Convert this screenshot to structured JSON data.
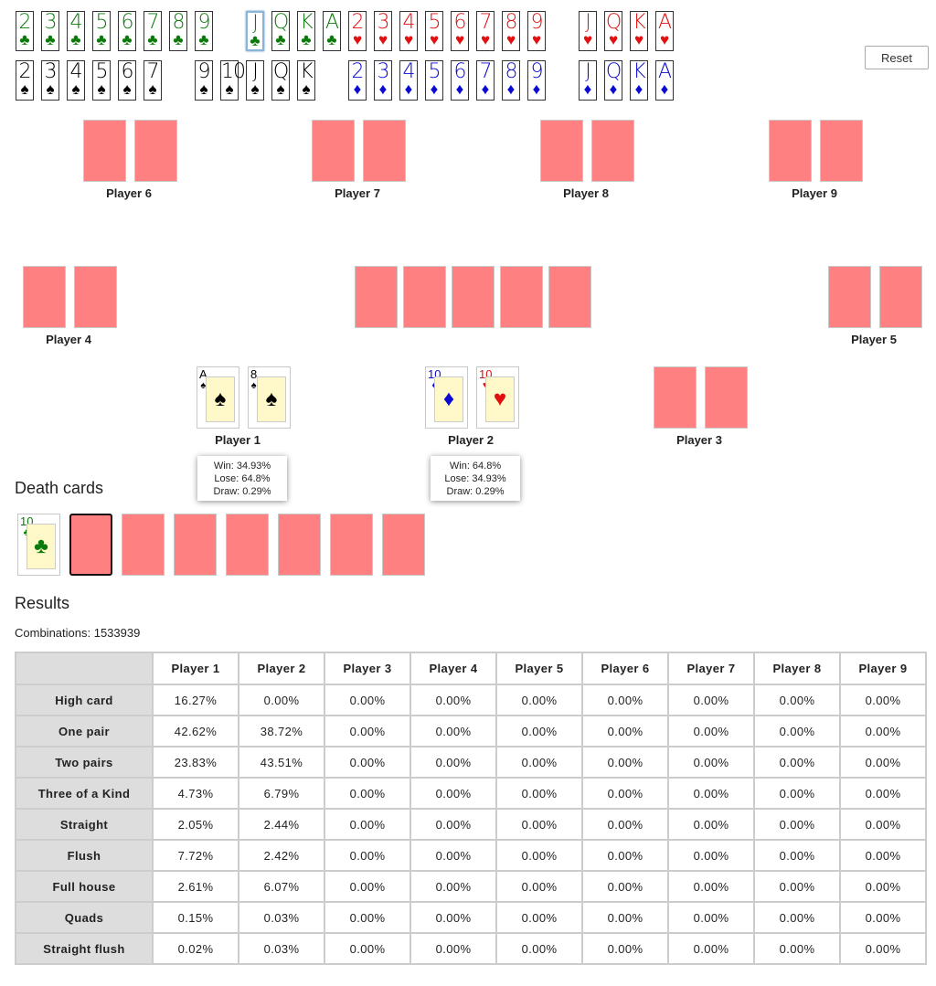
{
  "picker": {
    "rows": [
      [
        {
          "suit": "♣",
          "color": "#0a7a0a",
          "ranks": [
            "2",
            "3",
            "4",
            "5",
            "6",
            "7",
            "8",
            "9",
            null,
            "J",
            "Q",
            "K",
            "A"
          ]
        },
        {
          "suit": "♥",
          "color": "#e01010",
          "ranks": [
            "2",
            "3",
            "4",
            "5",
            "6",
            "7",
            "8",
            "9",
            null,
            "J",
            "Q",
            "K",
            "A"
          ]
        }
      ],
      [
        {
          "suit": "♠",
          "color": "#000000",
          "ranks": [
            "2",
            "3",
            "4",
            "5",
            "6",
            "7",
            null,
            "9",
            "10",
            "J",
            "Q",
            "K",
            null
          ]
        },
        {
          "suit": "♦",
          "color": "#0a0ad0",
          "ranks": [
            "2",
            "3",
            "4",
            "5",
            "6",
            "7",
            "8",
            "9",
            null,
            "J",
            "Q",
            "K",
            "A"
          ]
        }
      ]
    ],
    "reset": "Reset"
  },
  "players": [
    {
      "name": "Player 6",
      "cards": [
        null,
        null
      ]
    },
    {
      "name": "Player 7",
      "cards": [
        null,
        null
      ]
    },
    {
      "name": "Player 8",
      "cards": [
        null,
        null
      ]
    },
    {
      "name": "Player 9",
      "cards": [
        null,
        null
      ]
    },
    {
      "name": "Player 4",
      "cards": [
        null,
        null
      ]
    },
    {
      "name": "Player 5",
      "cards": [
        null,
        null
      ]
    },
    {
      "name": "Player 1",
      "cards": [
        {
          "rank": "A",
          "suit": "♠",
          "color": "#000000"
        },
        {
          "rank": "8",
          "suit": "♠",
          "color": "#000000"
        }
      ],
      "stats": [
        "Win: 34.93%",
        "Lose: 64.8%",
        "Draw: 0.29%"
      ]
    },
    {
      "name": "Player 2",
      "cards": [
        {
          "rank": "10",
          "suit": "♦",
          "color": "#0a0ad0"
        },
        {
          "rank": "10",
          "suit": "♥",
          "color": "#e01010"
        }
      ],
      "stats": [
        "Win: 64.8%",
        "Lose: 34.93%",
        "Draw: 0.29%"
      ]
    },
    {
      "name": "Player 3",
      "cards": [
        null,
        null
      ]
    }
  ],
  "board": [
    null,
    null,
    null,
    null,
    null
  ],
  "death_cards": {
    "title": "Death cards",
    "cards": [
      {
        "rank": "10",
        "suit": "♣",
        "color": "#0a7a0a"
      },
      null,
      null,
      null,
      null,
      null,
      null,
      null
    ]
  },
  "results": {
    "title": "Results",
    "combinations": "Combinations: 1533939",
    "table": {
      "header": [
        "Player 1",
        "Player 2",
        "Player 3",
        "Player 4",
        "Player 5",
        "Player 6",
        "Player 7",
        "Player 8",
        "Player 9"
      ],
      "rows": [
        [
          "High card",
          "16.27%",
          "0.00%",
          "0.00%",
          "0.00%",
          "0.00%",
          "0.00%",
          "0.00%",
          "0.00%",
          "0.00%"
        ],
        [
          "One pair",
          "42.62%",
          "38.72%",
          "0.00%",
          "0.00%",
          "0.00%",
          "0.00%",
          "0.00%",
          "0.00%",
          "0.00%"
        ],
        [
          "Two pairs",
          "23.83%",
          "43.51%",
          "0.00%",
          "0.00%",
          "0.00%",
          "0.00%",
          "0.00%",
          "0.00%",
          "0.00%"
        ],
        [
          "Three of a Kind",
          "4.73%",
          "6.79%",
          "0.00%",
          "0.00%",
          "0.00%",
          "0.00%",
          "0.00%",
          "0.00%",
          "0.00%"
        ],
        [
          "Straight",
          "2.05%",
          "2.44%",
          "0.00%",
          "0.00%",
          "0.00%",
          "0.00%",
          "0.00%",
          "0.00%",
          "0.00%"
        ],
        [
          "Flush",
          "7.72%",
          "2.42%",
          "0.00%",
          "0.00%",
          "0.00%",
          "0.00%",
          "0.00%",
          "0.00%",
          "0.00%"
        ],
        [
          "Full house",
          "2.61%",
          "6.07%",
          "0.00%",
          "0.00%",
          "0.00%",
          "0.00%",
          "0.00%",
          "0.00%",
          "0.00%"
        ],
        [
          "Quads",
          "0.15%",
          "0.03%",
          "0.00%",
          "0.00%",
          "0.00%",
          "0.00%",
          "0.00%",
          "0.00%",
          "0.00%"
        ],
        [
          "Straight flush",
          "0.02%",
          "0.03%",
          "0.00%",
          "0.00%",
          "0.00%",
          "0.00%",
          "0.00%",
          "0.00%",
          "0.00%"
        ]
      ]
    }
  }
}
